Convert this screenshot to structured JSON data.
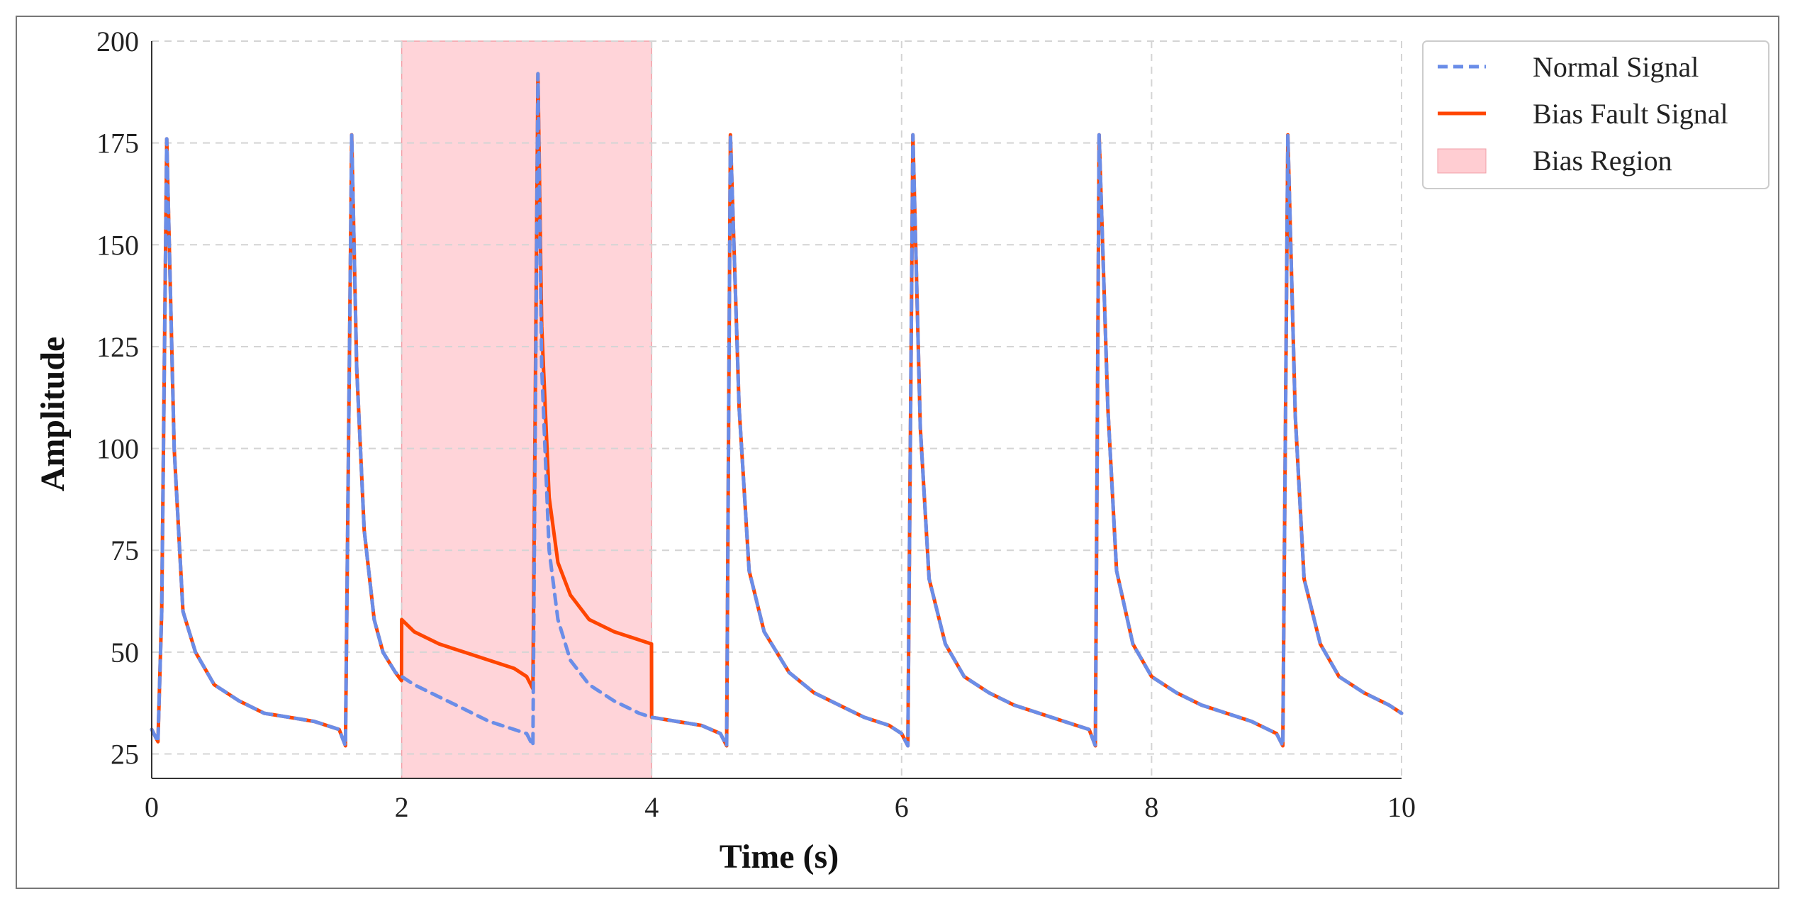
{
  "chart_data": {
    "type": "line",
    "title": "",
    "xlabel": "Time (s)",
    "ylabel": "Amplitude",
    "xlim": [
      0,
      10
    ],
    "ylim": [
      19,
      200
    ],
    "x_ticks": [
      0,
      2,
      4,
      6,
      8,
      10
    ],
    "y_ticks": [
      25,
      50,
      75,
      100,
      125,
      150,
      175,
      200
    ],
    "grid": true,
    "legend_position": "outside-top-right",
    "series": [
      {
        "name": "Normal Signal",
        "color": "#6a8de8",
        "style": "dashed",
        "x": [
          0.0,
          0.05,
          0.08,
          0.12,
          0.18,
          0.25,
          0.35,
          0.5,
          0.7,
          0.9,
          1.1,
          1.3,
          1.5,
          1.55,
          1.6,
          1.64,
          1.7,
          1.78,
          1.85,
          1.95,
          2.1,
          2.3,
          2.5,
          2.7,
          2.9,
          3.0,
          3.05,
          3.09,
          3.12,
          3.18,
          3.25,
          3.35,
          3.5,
          3.7,
          3.9,
          4.0,
          4.2,
          4.4,
          4.55,
          4.6,
          4.63,
          4.7,
          4.78,
          4.9,
          5.1,
          5.3,
          5.5,
          5.7,
          5.9,
          6.0,
          6.05,
          6.09,
          6.15,
          6.22,
          6.35,
          6.5,
          6.7,
          6.9,
          7.1,
          7.3,
          7.5,
          7.55,
          7.58,
          7.65,
          7.72,
          7.85,
          8.0,
          8.2,
          8.4,
          8.6,
          8.8,
          9.0,
          9.05,
          9.09,
          9.15,
          9.22,
          9.35,
          9.5,
          9.7,
          9.9,
          10.0
        ],
        "y": [
          31,
          28,
          60,
          176,
          100,
          60,
          50,
          42,
          38,
          35,
          34,
          33,
          31,
          27,
          177,
          120,
          80,
          58,
          50,
          45,
          42,
          39,
          36,
          33,
          31,
          30,
          27,
          192,
          120,
          75,
          58,
          48,
          42,
          38,
          35,
          34,
          33,
          32,
          30,
          27,
          177,
          110,
          70,
          55,
          45,
          40,
          37,
          34,
          32,
          30,
          27,
          177,
          105,
          68,
          52,
          44,
          40,
          37,
          35,
          33,
          31,
          27,
          177,
          110,
          70,
          52,
          44,
          40,
          37,
          35,
          33,
          30,
          27,
          177,
          108,
          68,
          52,
          44,
          40,
          37,
          35
        ]
      },
      {
        "name": "Bias Fault Signal",
        "color": "#ff4500",
        "style": "solid",
        "x": [
          0.0,
          0.05,
          0.08,
          0.12,
          0.18,
          0.25,
          0.35,
          0.5,
          0.7,
          0.9,
          1.1,
          1.3,
          1.5,
          1.55,
          1.6,
          1.64,
          1.7,
          1.78,
          1.85,
          1.95,
          1.999,
          2.0,
          2.1,
          2.3,
          2.5,
          2.7,
          2.9,
          3.0,
          3.05,
          3.09,
          3.12,
          3.18,
          3.25,
          3.35,
          3.5,
          3.7,
          3.9,
          3.999,
          4.0,
          4.2,
          4.4,
          4.55,
          4.6,
          4.63,
          4.7,
          4.78,
          4.9,
          5.1,
          5.3,
          5.5,
          5.7,
          5.9,
          6.0,
          6.05,
          6.09,
          6.15,
          6.22,
          6.35,
          6.5,
          6.7,
          6.9,
          7.1,
          7.3,
          7.5,
          7.55,
          7.58,
          7.65,
          7.72,
          7.85,
          8.0,
          8.2,
          8.4,
          8.6,
          8.8,
          9.0,
          9.05,
          9.09,
          9.15,
          9.22,
          9.35,
          9.5,
          9.7,
          9.9,
          10.0
        ],
        "y": [
          31,
          28,
          60,
          176,
          100,
          60,
          50,
          42,
          38,
          35,
          34,
          33,
          31,
          27,
          177,
          120,
          80,
          58,
          50,
          45,
          43,
          58,
          55,
          52,
          50,
          48,
          46,
          44,
          41,
          192,
          130,
          88,
          72,
          64,
          58,
          55,
          53,
          52,
          34,
          33,
          32,
          30,
          27,
          177,
          110,
          70,
          55,
          45,
          40,
          37,
          34,
          32,
          30,
          27,
          177,
          105,
          68,
          52,
          44,
          40,
          37,
          35,
          33,
          31,
          27,
          177,
          110,
          70,
          52,
          44,
          40,
          37,
          35,
          33,
          30,
          27,
          177,
          108,
          68,
          52,
          44,
          40,
          37,
          35
        ]
      }
    ],
    "shaded_regions": [
      {
        "name": "Bias Region",
        "x_start": 2,
        "x_end": 4,
        "color": "#ffcdd2"
      }
    ]
  },
  "legend": {
    "items": [
      {
        "label": "Normal Signal",
        "kind": "dashed-line",
        "color": "#6a8de8"
      },
      {
        "label": "Bias Fault Signal",
        "kind": "solid-line",
        "color": "#ff4500"
      },
      {
        "label": "Bias Region",
        "kind": "patch",
        "color": "#ffcdd2"
      }
    ]
  }
}
